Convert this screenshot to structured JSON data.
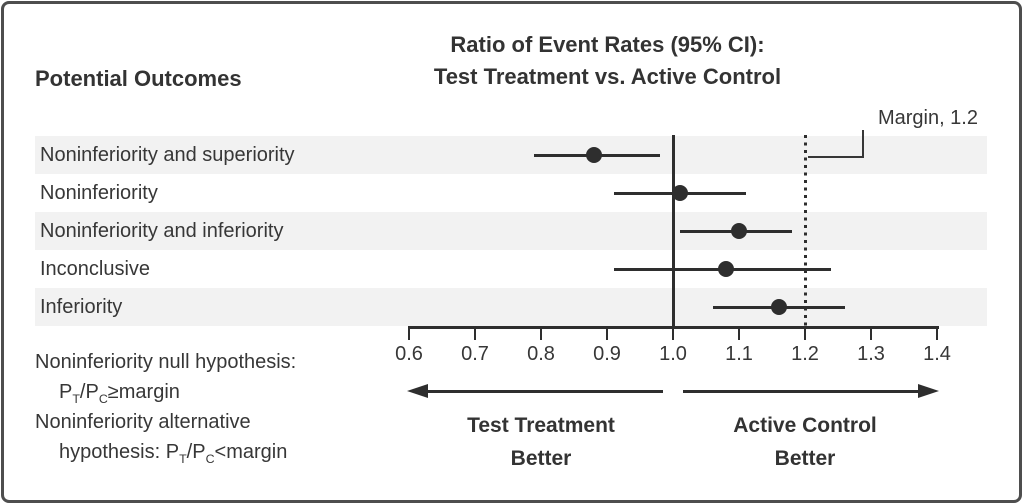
{
  "header": {
    "title_line1": "Ratio of Event Rates (95% CI):",
    "title_line2": "Test Treatment vs. Active Control",
    "outcomes_label": "Potential Outcomes"
  },
  "chart_data": {
    "type": "forest",
    "title": "Ratio of Event Rates (95% CI): Test Treatment vs. Active Control",
    "rows": [
      {
        "label": "Noninferiority and superiority",
        "estimate": 0.88,
        "ci_low": 0.79,
        "ci_high": 0.98
      },
      {
        "label": "Noninferiority",
        "estimate": 1.01,
        "ci_low": 0.91,
        "ci_high": 1.11
      },
      {
        "label": "Noninferiority and inferiority",
        "estimate": 1.1,
        "ci_low": 1.01,
        "ci_high": 1.18
      },
      {
        "label": "Inconclusive",
        "estimate": 1.08,
        "ci_low": 0.91,
        "ci_high": 1.24
      },
      {
        "label": "Inferiority",
        "estimate": 1.16,
        "ci_low": 1.06,
        "ci_high": 1.26
      }
    ],
    "axis": {
      "min": 0.6,
      "max": 1.4,
      "ticks": [
        0.6,
        0.7,
        0.8,
        0.9,
        1.0,
        1.1,
        1.2,
        1.3,
        1.4
      ],
      "tick_labels": [
        "0.6",
        "0.7",
        "0.8",
        "0.9",
        "1.0",
        "1.1",
        "1.2",
        "1.3",
        "1.4"
      ],
      "grid": false
    },
    "reference_line": 1.0,
    "margin_line": 1.2,
    "margin_label": "Margin, 1.2",
    "stripe_rows": [
      0,
      2,
      4
    ],
    "stripe_color": "#f2f2f2",
    "ink_color": "#2e2e2e",
    "direction_labels": {
      "left_line1": "Test Treatment",
      "left_line2": "Better",
      "right_line1": "Active Control",
      "right_line2": "Better"
    }
  },
  "hypotheses": {
    "null_line1": "Noninferiority null hypothesis:",
    "null_formula": {
      "p1": "P",
      "sub1": "T",
      "p2": "/P",
      "sub2": "C",
      "op": "≥margin"
    },
    "alt_line1": "Noninferiority alternative",
    "alt_prefix": "hypothesis: ",
    "alt_formula": {
      "p1": "P",
      "sub1": "T",
      "p2": "/P",
      "sub2": "C",
      "op": "<margin"
    }
  }
}
